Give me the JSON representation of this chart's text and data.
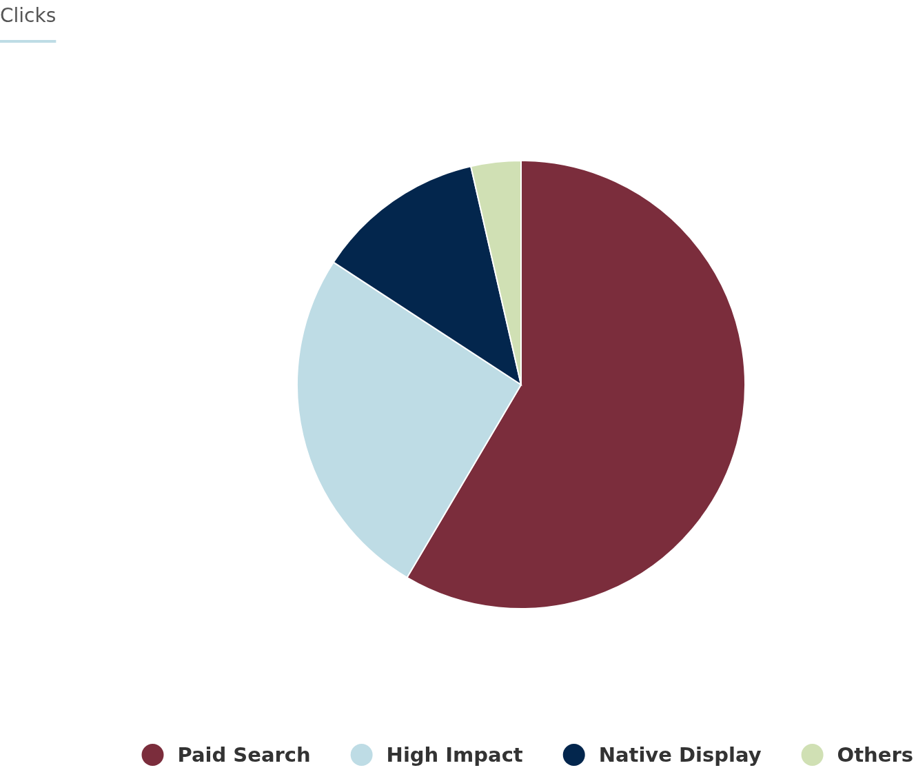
{
  "chart_data": {
    "type": "pie",
    "title": "Clicks",
    "categories": [
      "Paid Search",
      "High Impact",
      "Native Display",
      "Others"
    ],
    "values": [
      58.5,
      25.7,
      12.2,
      3.6
    ],
    "colors": [
      "#7b2d3c",
      "#bedce5",
      "#03264d",
      "#d0e0b4"
    ],
    "legend": "bottom"
  }
}
